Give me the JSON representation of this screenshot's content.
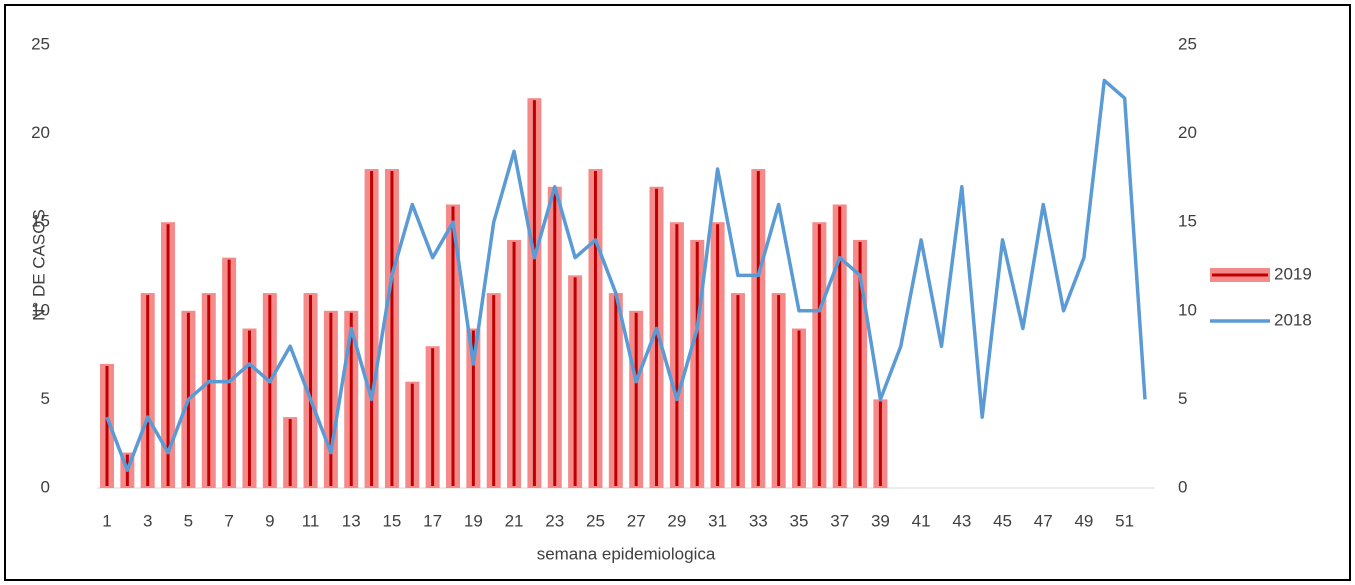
{
  "chart_data": {
    "type": "bar_line",
    "x_label": "semana epidemiologica",
    "y_label": "N° DE CASOS",
    "categories": [
      1,
      null,
      3,
      null,
      5,
      null,
      7,
      null,
      9,
      null,
      11,
      null,
      13,
      null,
      15,
      null,
      17,
      null,
      19,
      null,
      21,
      null,
      23,
      null,
      25,
      null,
      27,
      null,
      29,
      null,
      31,
      null,
      33,
      null,
      35,
      null,
      37,
      null,
      39,
      null,
      41,
      null,
      43,
      null,
      45,
      null,
      47,
      null,
      49,
      null,
      51,
      null
    ],
    "series": [
      {
        "name": "2019",
        "type": "bar",
        "color": "#f58a8a",
        "edge_color": "#c00000",
        "values": [
          7,
          2,
          11,
          15,
          10,
          11,
          13,
          9,
          11,
          4,
          11,
          10,
          10,
          18,
          18,
          6,
          8,
          16,
          9,
          11,
          14,
          22,
          17,
          12,
          18,
          11,
          10,
          17,
          15,
          14,
          15,
          11,
          18,
          11,
          9,
          15,
          16,
          14,
          5,
          null,
          null,
          null,
          null,
          null,
          null,
          null,
          null,
          null,
          null,
          null,
          null,
          null
        ]
      },
      {
        "name": "2018",
        "type": "line",
        "axis": "y2",
        "color": "#5b9bd5",
        "values": [
          4,
          1,
          4,
          2,
          5,
          6,
          6,
          7,
          6,
          8,
          5,
          2,
          9,
          5,
          12,
          16,
          13,
          15,
          7,
          15,
          19,
          13,
          17,
          13,
          14,
          11,
          6,
          9,
          5,
          9,
          18,
          12,
          12,
          16,
          10,
          10,
          13,
          12,
          5,
          8,
          14,
          8,
          17,
          4,
          14,
          9,
          16,
          10,
          13,
          23,
          22,
          5
        ]
      }
    ],
    "ylim": [
      0,
      25
    ],
    "yticks": [
      0,
      5,
      10,
      15,
      20,
      25
    ],
    "y2lim": [
      0,
      25
    ],
    "y2ticks": [
      0,
      5,
      10,
      15,
      20,
      25
    ],
    "legend": "right"
  }
}
